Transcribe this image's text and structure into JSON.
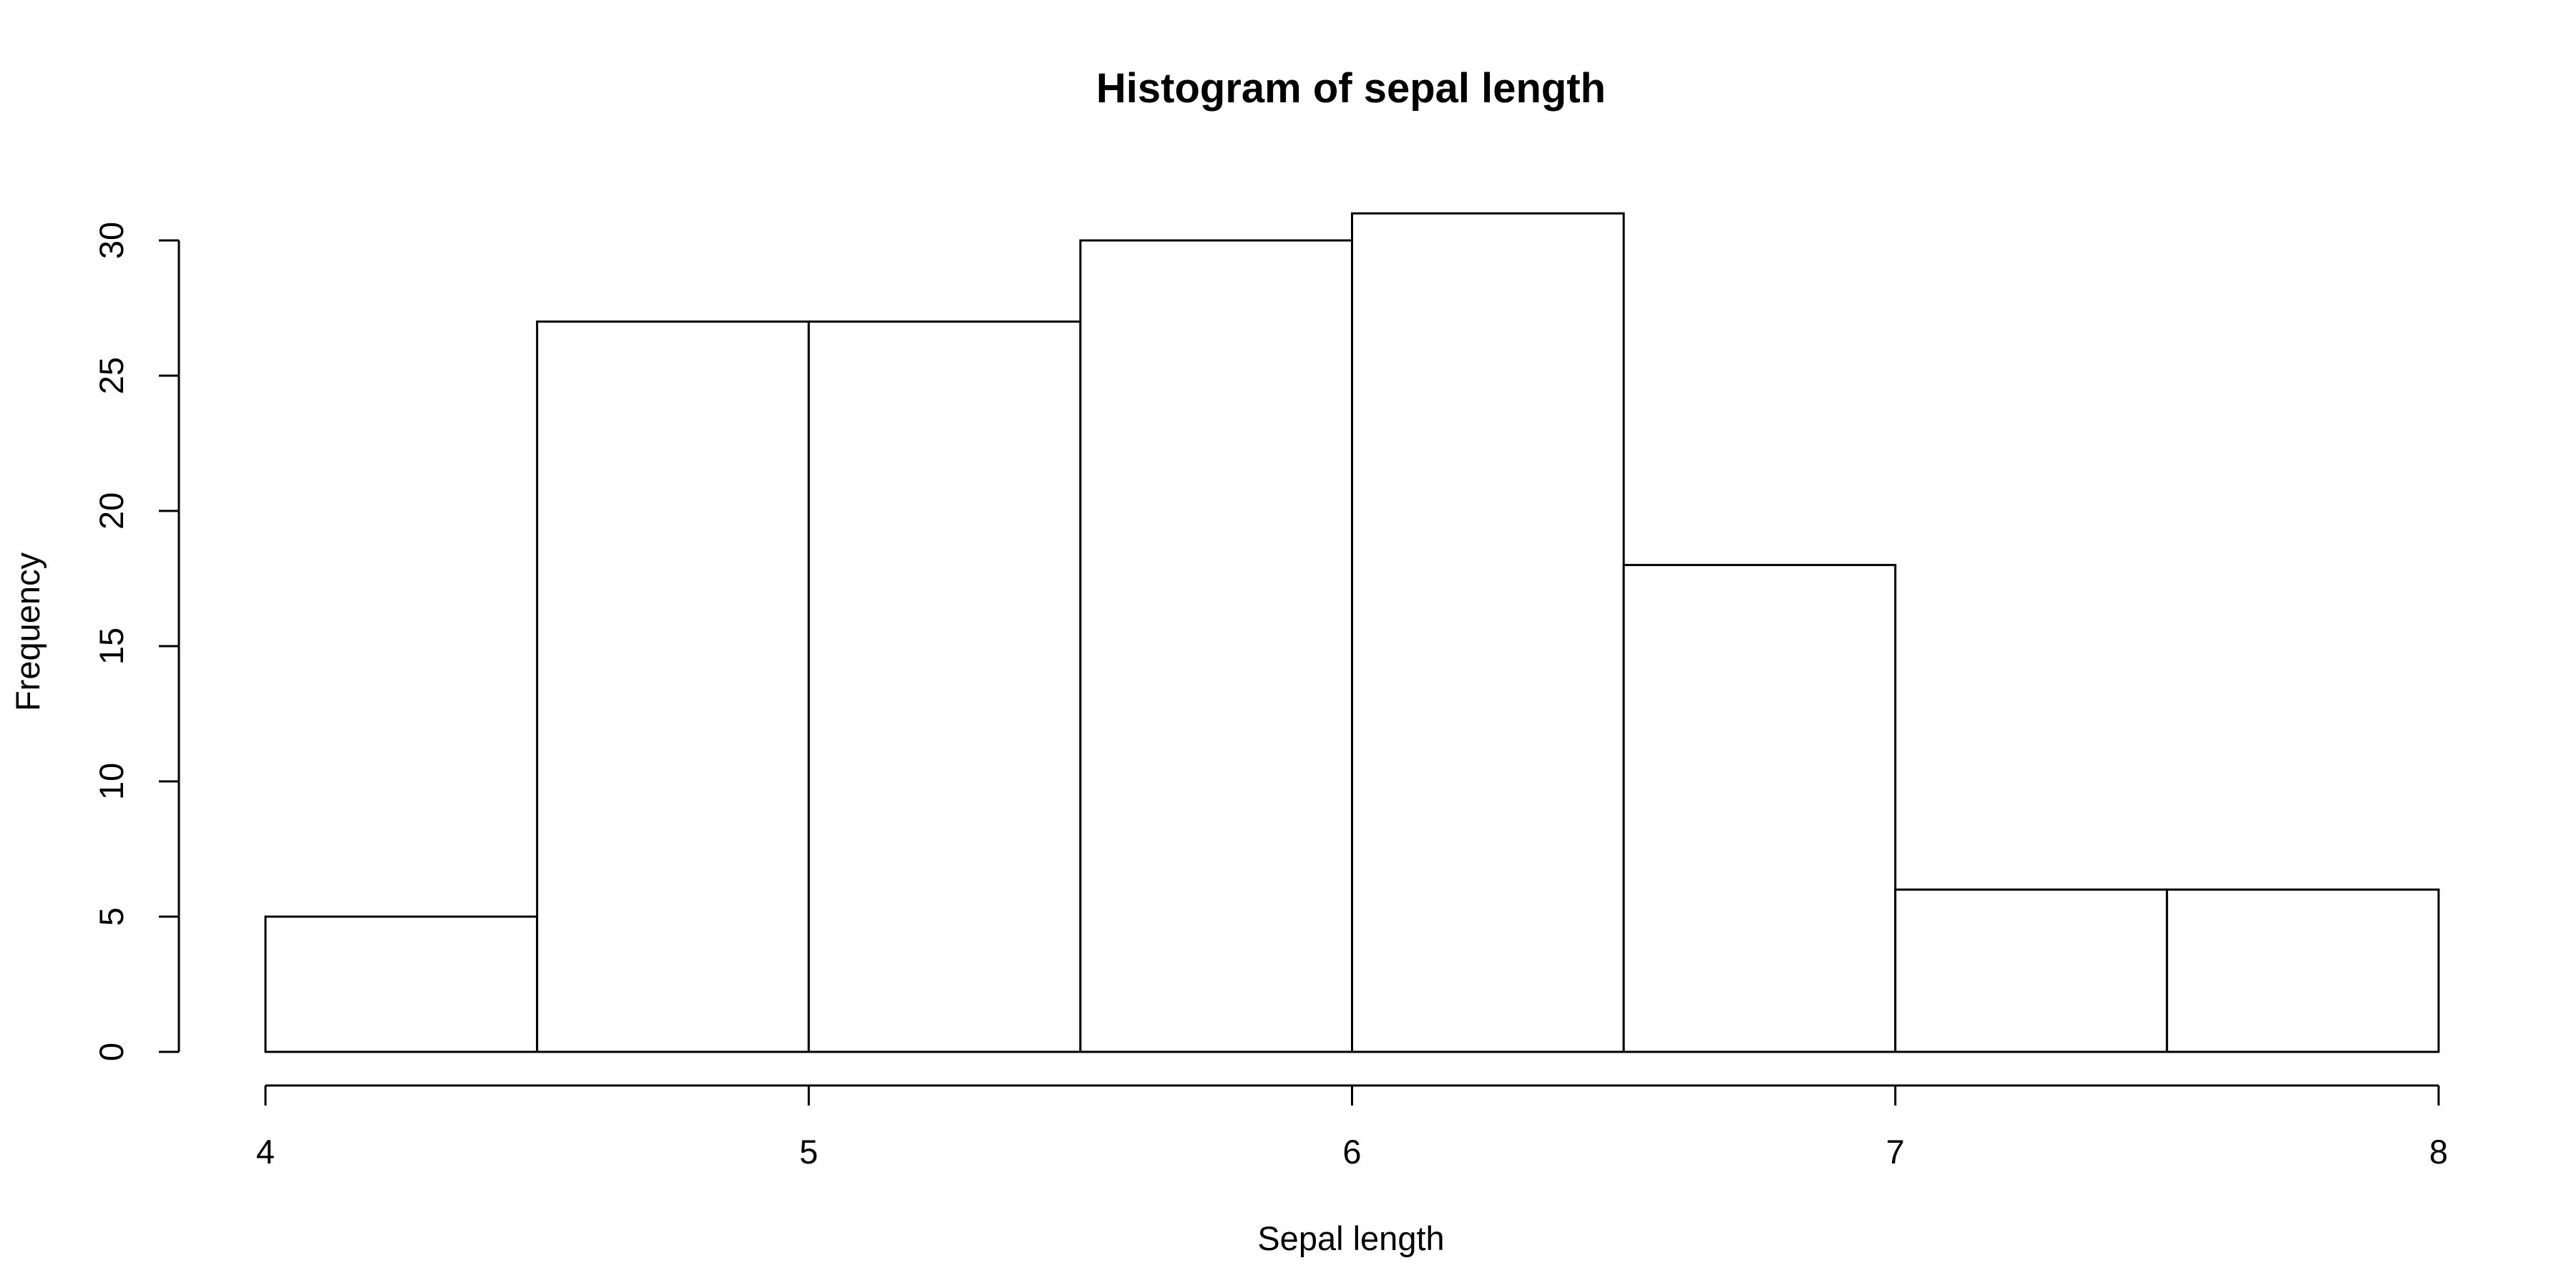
{
  "chart_data": {
    "type": "bar",
    "subtype": "histogram",
    "title": "Histogram of sepal length",
    "xlabel": "Sepal length",
    "ylabel": "Frequency",
    "bins": [
      {
        "x0": 4.0,
        "x1": 4.5,
        "value": 5
      },
      {
        "x0": 4.5,
        "x1": 5.0,
        "value": 27
      },
      {
        "x0": 5.0,
        "x1": 5.5,
        "value": 27
      },
      {
        "x0": 5.5,
        "x1": 6.0,
        "value": 30
      },
      {
        "x0": 6.0,
        "x1": 6.5,
        "value": 31
      },
      {
        "x0": 6.5,
        "x1": 7.0,
        "value": 18
      },
      {
        "x0": 7.0,
        "x1": 7.5,
        "value": 6
      },
      {
        "x0": 7.5,
        "x1": 8.0,
        "value": 6
      }
    ],
    "xlim": [
      4,
      8
    ],
    "ylim": [
      0,
      30
    ],
    "x_ticks": [
      {
        "value": 4,
        "label": "4"
      },
      {
        "value": 5,
        "label": "5"
      },
      {
        "value": 6,
        "label": "6"
      },
      {
        "value": 7,
        "label": "7"
      },
      {
        "value": 8,
        "label": "8"
      }
    ],
    "y_ticks": [
      {
        "value": 0,
        "label": "0"
      },
      {
        "value": 5,
        "label": "5"
      },
      {
        "value": 10,
        "label": "10"
      },
      {
        "value": 15,
        "label": "15"
      },
      {
        "value": 20,
        "label": "20"
      },
      {
        "value": 25,
        "label": "25"
      },
      {
        "value": 30,
        "label": "30"
      }
    ],
    "grid": false,
    "legend": "none",
    "bar_fill": "#ffffff",
    "bar_stroke": "#000000"
  }
}
